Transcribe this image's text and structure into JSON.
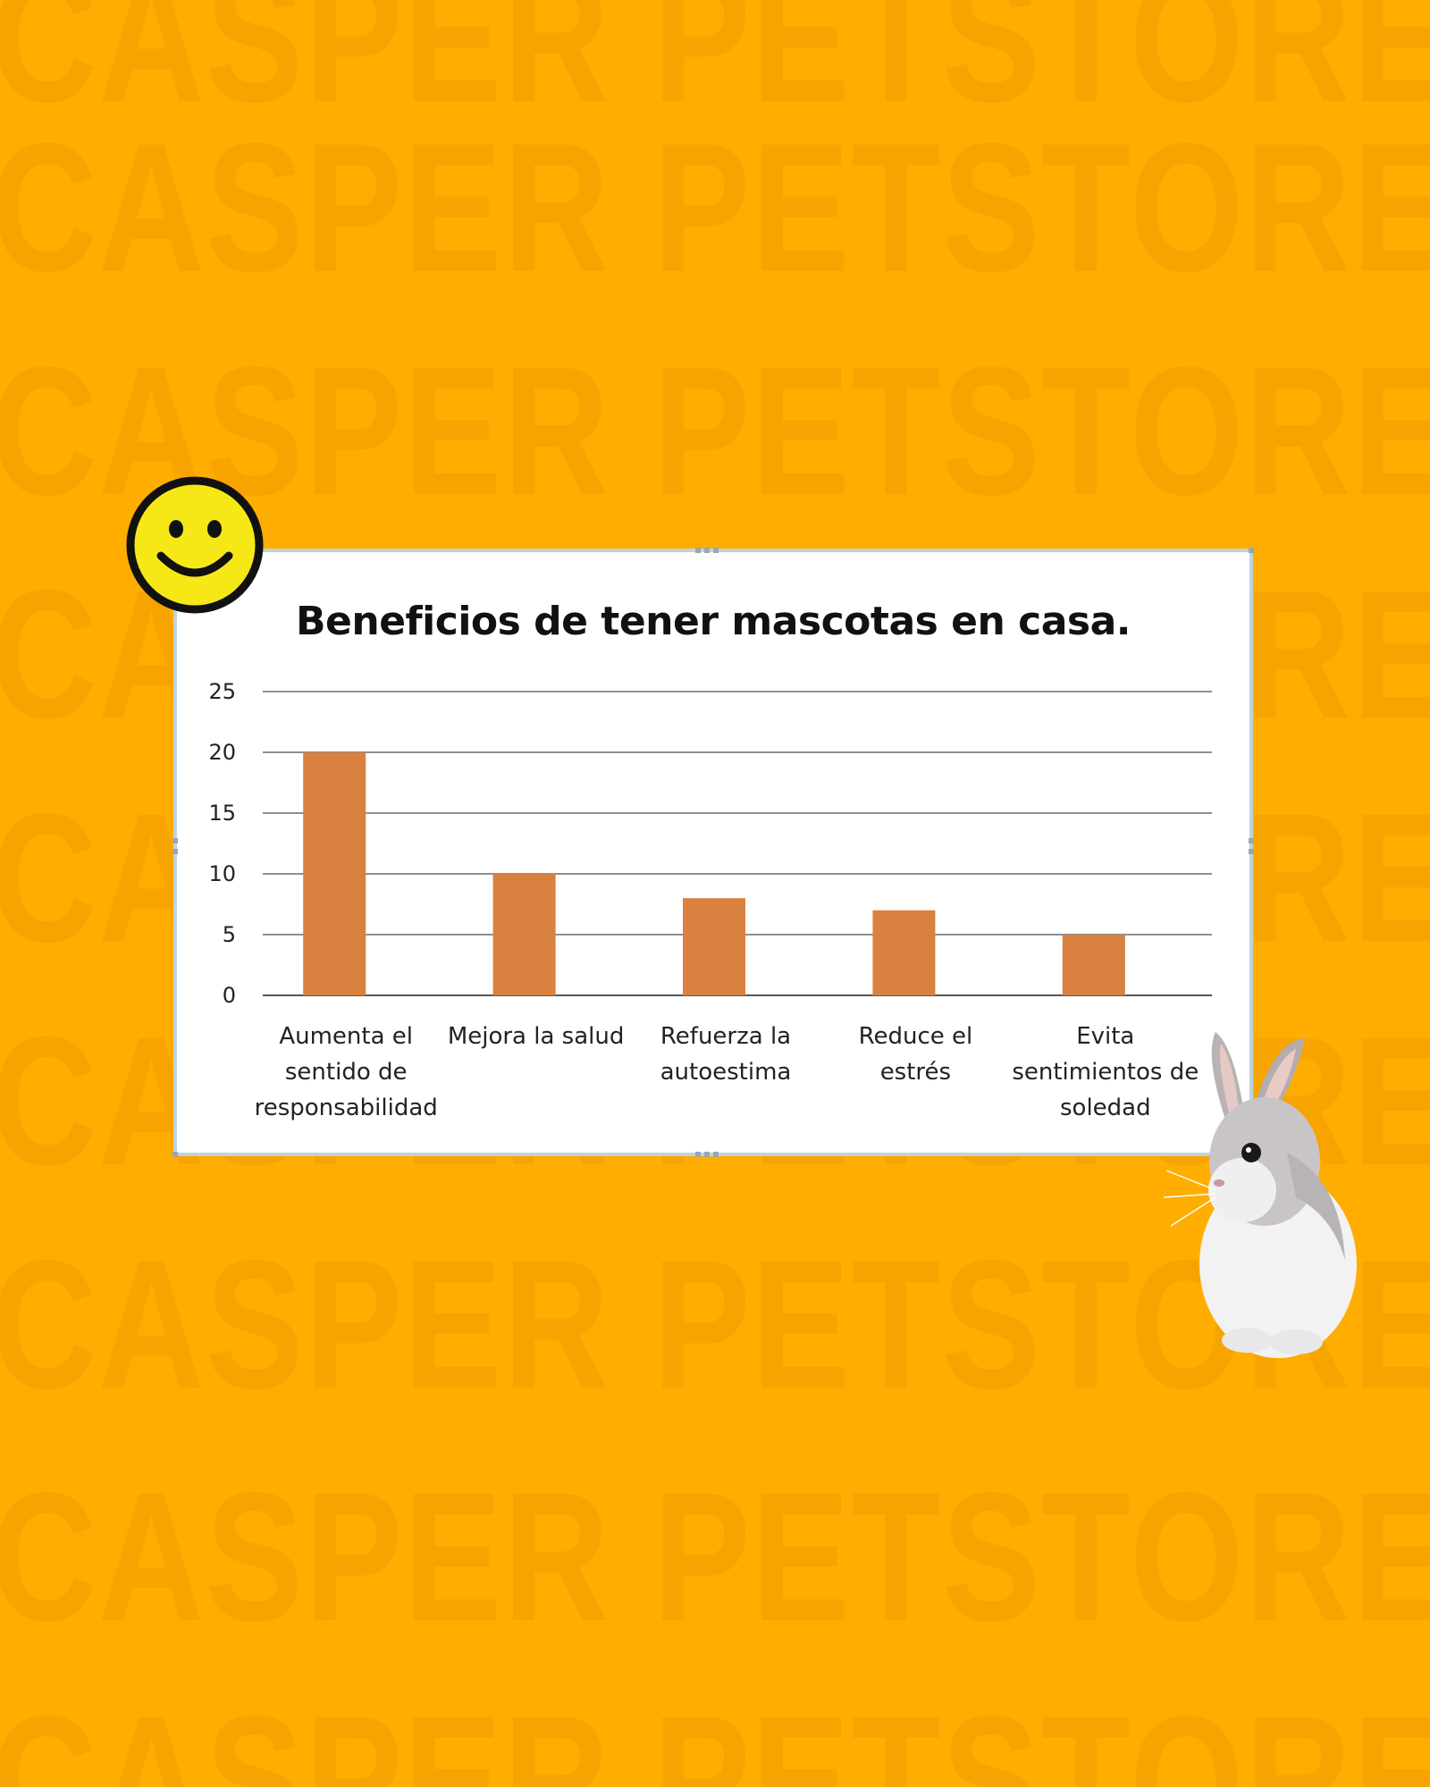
{
  "background": {
    "color": "#FFAD00",
    "watermark_text": "CASPER PETSTORE"
  },
  "decorations": {
    "smiley": "smiley-face-icon",
    "bunny": "rabbit-image"
  },
  "chart_data": {
    "type": "bar",
    "title": "Beneficios de tener mascotas en casa.",
    "categories": [
      "Aumenta el sentido de responsabilidad",
      "Mejora la salud",
      "Refuerza la autoestima",
      "Reduce el estrés",
      "Evita sentimientos de soledad"
    ],
    "category_lines": [
      [
        "Aumenta el",
        "sentido de",
        "responsabilidad"
      ],
      [
        "Mejora la salud"
      ],
      [
        "Refuerza la",
        "autoestima"
      ],
      [
        "Reduce el",
        "estrés"
      ],
      [
        "Evita",
        "sentimientos de",
        "soledad"
      ]
    ],
    "values": [
      20,
      10,
      8,
      7,
      5
    ],
    "ylim": [
      0,
      25
    ],
    "yticks": [
      0,
      5,
      10,
      15,
      20,
      25
    ],
    "grid": true,
    "bar_color": "#D9813F",
    "xlabel": "",
    "ylabel": ""
  }
}
